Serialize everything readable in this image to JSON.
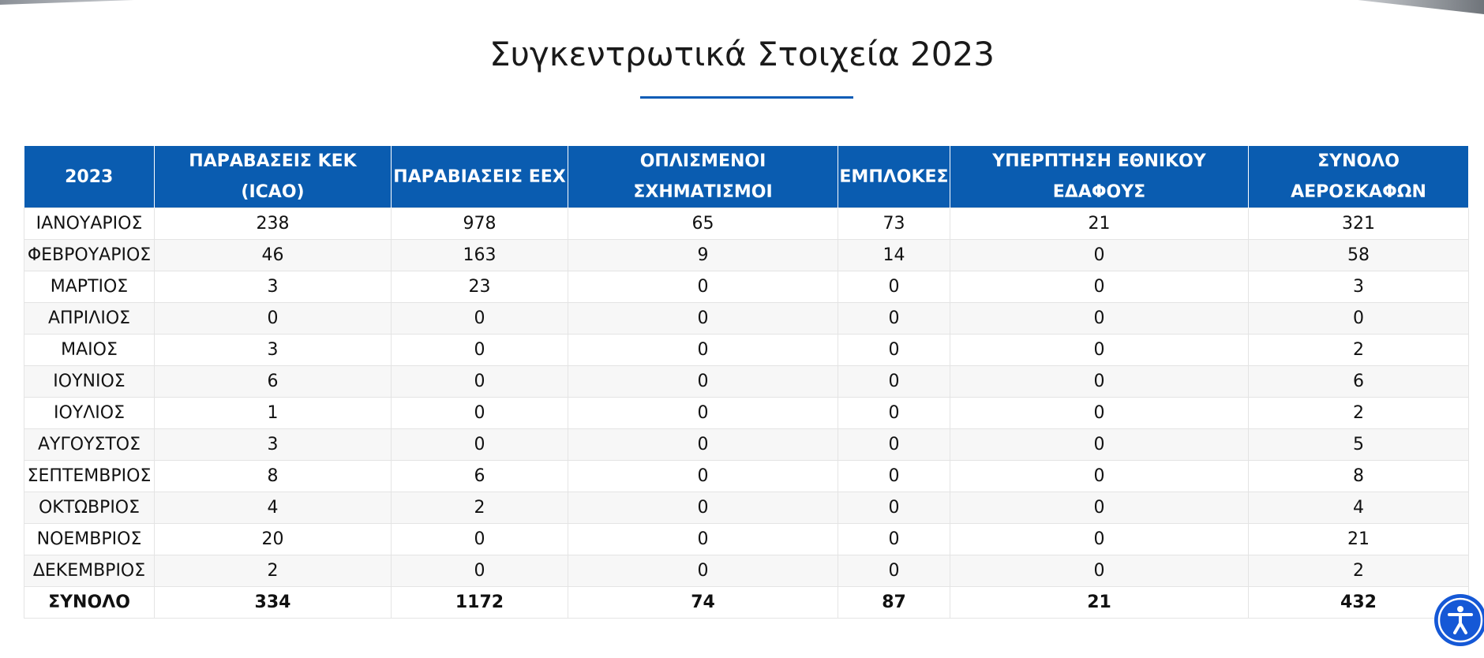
{
  "title": "Συγκεντρωτικά Στοιχεία 2023",
  "table": {
    "header": [
      "2023",
      "ΠΑΡΑΒΑΣΕΙΣ ΚΕΚ (ICAO)",
      "ΠΑΡΑΒΙΑΣΕΙΣ ΕΕΧ",
      "ΟΠΛΙΣΜΕΝΟΙ ΣΧΗΜΑΤΙΣΜΟΙ",
      "ΕΜΠΛΟΚΕΣ",
      "ΥΠΕΡΠΤΗΣΗ ΕΘΝΙΚΟΥ ΕΔΑΦΟΥΣ",
      "ΣΥΝΟΛΟ ΑΕΡΟΣΚΑΦΩΝ"
    ],
    "rows": [
      [
        "ΙΑΝΟΥΑΡΙΟΣ",
        238,
        978,
        65,
        73,
        21,
        321
      ],
      [
        "ΦΕΒΡΟΥΑΡΙΟΣ",
        46,
        163,
        9,
        14,
        0,
        58
      ],
      [
        "ΜΑΡΤΙΟΣ",
        3,
        23,
        0,
        0,
        0,
        3
      ],
      [
        "ΑΠΡΙΛΙΟΣ",
        0,
        0,
        0,
        0,
        0,
        0
      ],
      [
        "ΜΑΙΟΣ",
        3,
        0,
        0,
        0,
        0,
        2
      ],
      [
        "ΙΟΥΝΙΟΣ",
        6,
        0,
        0,
        0,
        0,
        6
      ],
      [
        "ΙΟΥΛΙΟΣ",
        1,
        0,
        0,
        0,
        0,
        2
      ],
      [
        "ΑΥΓΟΥΣΤΟΣ",
        3,
        0,
        0,
        0,
        0,
        5
      ],
      [
        "ΣΕΠΤΕΜΒΡΙΟΣ",
        8,
        6,
        0,
        0,
        0,
        8
      ],
      [
        "ΟΚΤΩΒΡΙΟΣ",
        4,
        2,
        0,
        0,
        0,
        4
      ],
      [
        "ΝΟΕΜΒΡΙΟΣ",
        20,
        0,
        0,
        0,
        0,
        21
      ],
      [
        "ΔΕΚΕΜΒΡΙΟΣ",
        2,
        0,
        0,
        0,
        0,
        2
      ]
    ],
    "total": [
      "ΣΥΝΟΛΟ",
      334,
      1172,
      74,
      87,
      21,
      432
    ]
  }
}
